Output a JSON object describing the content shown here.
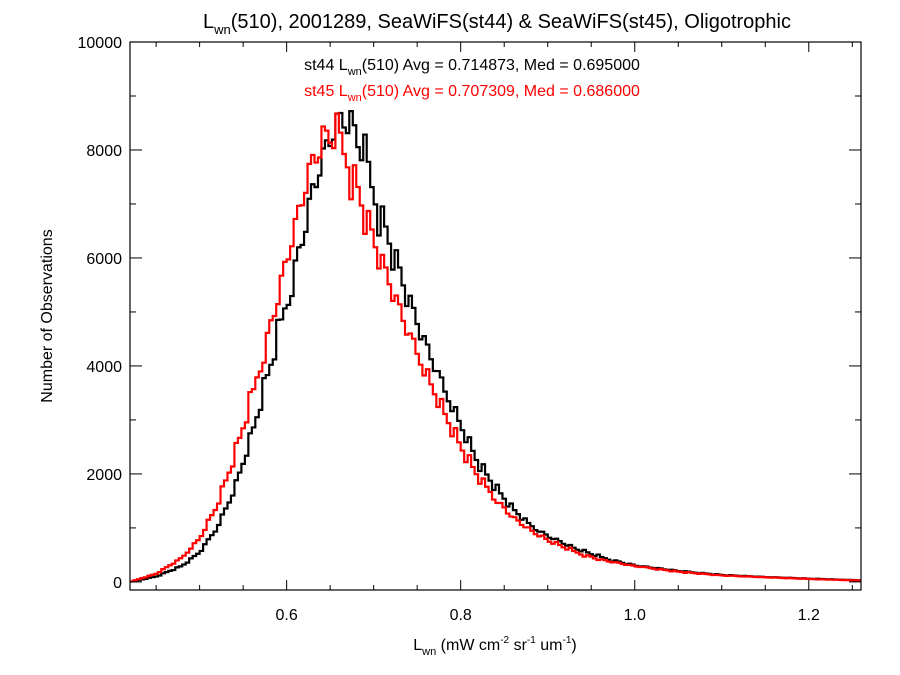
{
  "chart_data": {
    "type": "line",
    "style": "step-histogram",
    "title": {
      "main": "L",
      "sub": "wn",
      "rest": "(510), 2001289, SeaWiFS(st44) & SeaWiFS(st45), Oligotrophic"
    },
    "xlabel": {
      "main": "L",
      "sub": "wn",
      "part1": " (mW cm",
      "sup1": "-2",
      "part2": " sr",
      "sup2": "-1",
      "part3": " um",
      "sup3": "-1",
      "part4": ")"
    },
    "ylabel": "Number of Observations",
    "xlim": [
      0.42,
      1.26
    ],
    "ylim": [
      -150,
      10000
    ],
    "xticks": [
      0.6,
      0.8,
      1.0,
      1.2
    ],
    "xtick_labels": [
      "0.6",
      "0.8",
      "1.0",
      "1.2"
    ],
    "yticks": [
      0,
      2000,
      4000,
      6000,
      8000,
      10000
    ],
    "ytick_labels": [
      "0",
      "2000",
      "4000",
      "6000",
      "8000",
      "10000"
    ],
    "grid": false,
    "annotations": [
      {
        "prefix": "st44 L",
        "sub": "wn",
        "suffix": "(510) Avg = 0.714873, Med = 0.695000",
        "color": "#000000"
      },
      {
        "prefix": "st45 L",
        "sub": "wn",
        "suffix": "(510) Avg = 0.707309, Med = 0.686000",
        "color": "#ff0000"
      }
    ],
    "series": [
      {
        "color": "#000000",
        "stats": {
          "avg": 0.714873,
          "med": 0.695
        },
        "x": [
          0.42,
          0.45,
          0.48,
          0.5,
          0.52,
          0.54,
          0.56,
          0.58,
          0.6,
          0.62,
          0.63,
          0.64,
          0.65,
          0.66,
          0.665,
          0.67,
          0.68,
          0.69,
          0.7,
          0.72,
          0.74,
          0.76,
          0.78,
          0.8,
          0.82,
          0.84,
          0.86,
          0.88,
          0.9,
          0.93,
          0.96,
          1.0,
          1.05,
          1.1,
          1.15,
          1.2,
          1.26
        ],
        "y": [
          0,
          100,
          300,
          550,
          1000,
          1700,
          2700,
          3900,
          5200,
          6600,
          7300,
          7800,
          8200,
          8450,
          8500,
          8400,
          8150,
          7750,
          7200,
          6300,
          5300,
          4400,
          3600,
          2900,
          2200,
          1750,
          1350,
          1050,
          850,
          620,
          460,
          310,
          200,
          130,
          90,
          60,
          30
        ]
      },
      {
        "color": "#ff0000",
        "stats": {
          "avg": 0.707309,
          "med": 0.686
        },
        "x": [
          0.42,
          0.45,
          0.48,
          0.5,
          0.52,
          0.54,
          0.56,
          0.58,
          0.6,
          0.62,
          0.63,
          0.64,
          0.65,
          0.66,
          0.67,
          0.68,
          0.69,
          0.7,
          0.72,
          0.74,
          0.76,
          0.78,
          0.8,
          0.82,
          0.84,
          0.86,
          0.88,
          0.9,
          0.93,
          0.96,
          1.0,
          1.05,
          1.1,
          1.15,
          1.2,
          1.26
        ],
        "y": [
          0,
          150,
          450,
          800,
          1400,
          2300,
          3400,
          4700,
          6000,
          7200,
          7700,
          8000,
          8150,
          8100,
          7800,
          7400,
          6900,
          6400,
          5500,
          4600,
          3850,
          3150,
          2500,
          1950,
          1550,
          1200,
          950,
          760,
          560,
          420,
          290,
          190,
          120,
          85,
          55,
          25
        ]
      }
    ]
  }
}
